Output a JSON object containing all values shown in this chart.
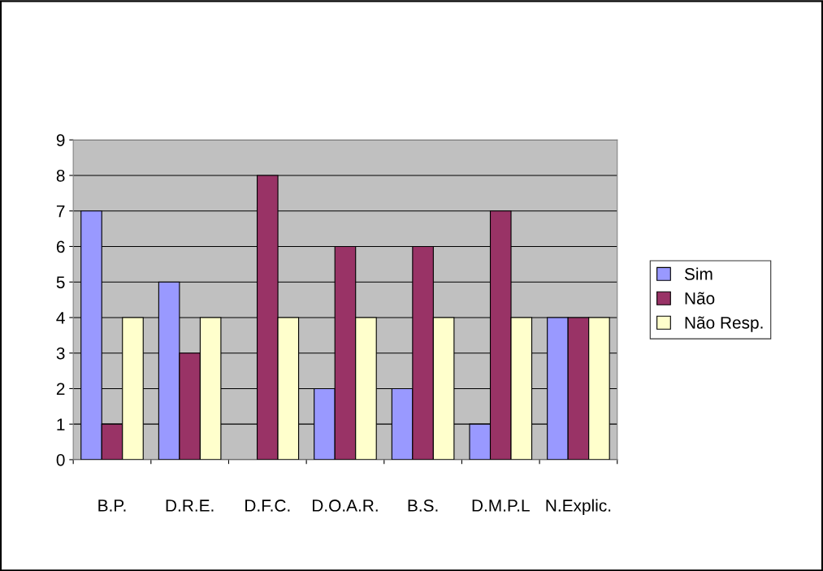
{
  "chart_data": {
    "type": "bar",
    "categories": [
      "B.P.",
      "D.R.E.",
      "D.F.C.",
      "D.O.A.R.",
      "B.S.",
      "D.M.P.L",
      "N.Explic."
    ],
    "series": [
      {
        "name": "Sim",
        "color": "#9999ff",
        "values": [
          7,
          5,
          null,
          2,
          2,
          1,
          4
        ]
      },
      {
        "name": "Não",
        "color": "#993366",
        "values": [
          1,
          3,
          8,
          6,
          6,
          7,
          4
        ]
      },
      {
        "name": "Não Resp.",
        "color": "#ffffcc",
        "values": [
          4,
          4,
          4,
          4,
          4,
          4,
          4
        ]
      }
    ],
    "ylim": [
      0,
      9
    ],
    "yticks": [
      0,
      1,
      2,
      3,
      4,
      5,
      6,
      7,
      8,
      9
    ],
    "grid": "y",
    "legend": "right"
  }
}
